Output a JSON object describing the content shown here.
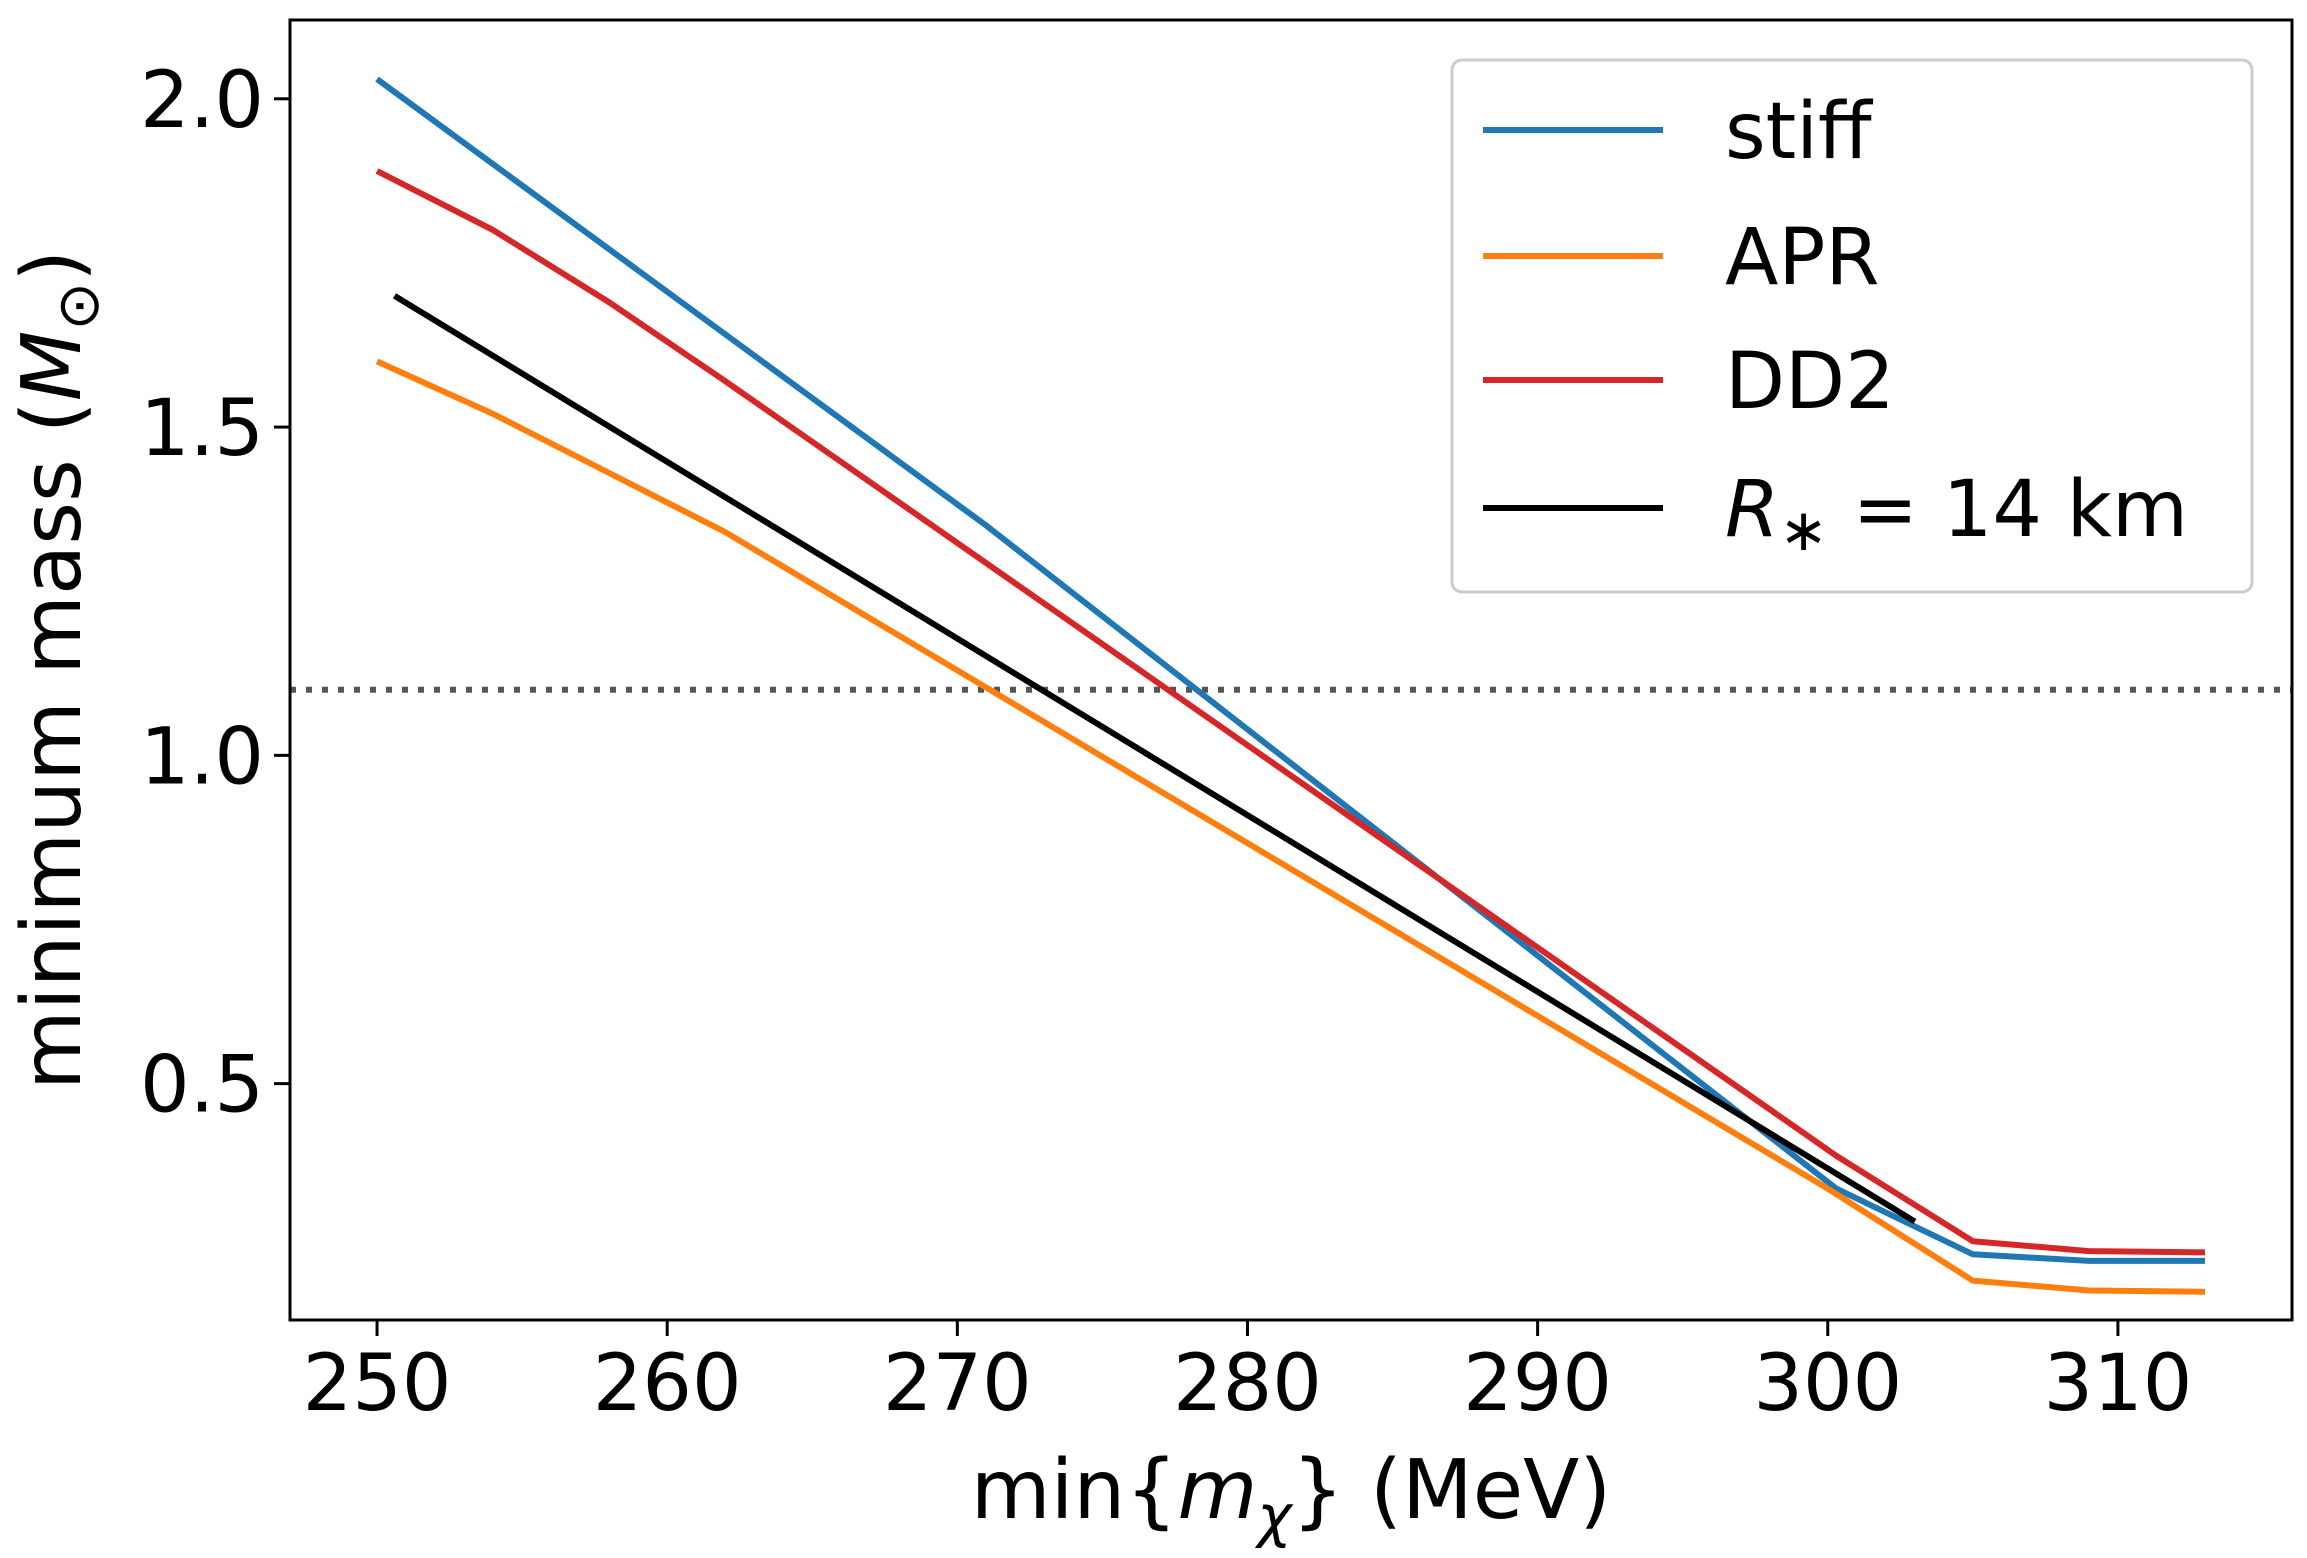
{
  "chart_data": {
    "type": "line",
    "xlabel": {
      "pre": "min{",
      "var": "m",
      "sub": "χ",
      "post": "} (MeV)"
    },
    "ylabel": {
      "pre": "minimum mass (",
      "var": "M",
      "sub": "⊙",
      "post": ")"
    },
    "xlim": [
      247,
      316
    ],
    "ylim": [
      0.14,
      2.12
    ],
    "xticks": [
      250,
      260,
      270,
      280,
      290,
      300,
      310
    ],
    "xtick_labels": [
      "250",
      "260",
      "270",
      "280",
      "290",
      "300",
      "310"
    ],
    "yticks": [
      0.5,
      1.0,
      1.5,
      2.0
    ],
    "ytick_labels": [
      "0.5",
      "1.0",
      "1.5",
      "2.0"
    ],
    "grid": false,
    "legend_position": "top-right",
    "reference_line": {
      "y": 1.1,
      "style": "dotted",
      "color": "#555555"
    },
    "series": [
      {
        "name": "stiff",
        "color": "#1f77b4",
        "x": [
          250,
          271,
          300.3,
          305,
          309,
          313
        ],
        "y": [
          2.03,
          1.35,
          0.34,
          0.24,
          0.23,
          0.23
        ]
      },
      {
        "name": "APR",
        "color": "#ff7f0e",
        "x": [
          250,
          254,
          258,
          262,
          300,
          305,
          309,
          313
        ],
        "y": [
          1.6,
          1.52,
          1.43,
          1.34,
          0.34,
          0.2,
          0.185,
          0.183
        ]
      },
      {
        "name": "DD2",
        "color": "#d62728",
        "x": [
          250,
          254,
          258,
          262,
          300.3,
          305,
          309,
          313
        ],
        "y": [
          1.89,
          1.8,
          1.69,
          1.57,
          0.39,
          0.26,
          0.245,
          0.243
        ]
      },
      {
        "name": {
          "var": "R",
          "sub": "∗",
          "post": " = 14 km"
        },
        "color": "#000000",
        "x": [
          250.6,
          303
        ],
        "y": [
          1.7,
          0.29
        ]
      }
    ]
  }
}
